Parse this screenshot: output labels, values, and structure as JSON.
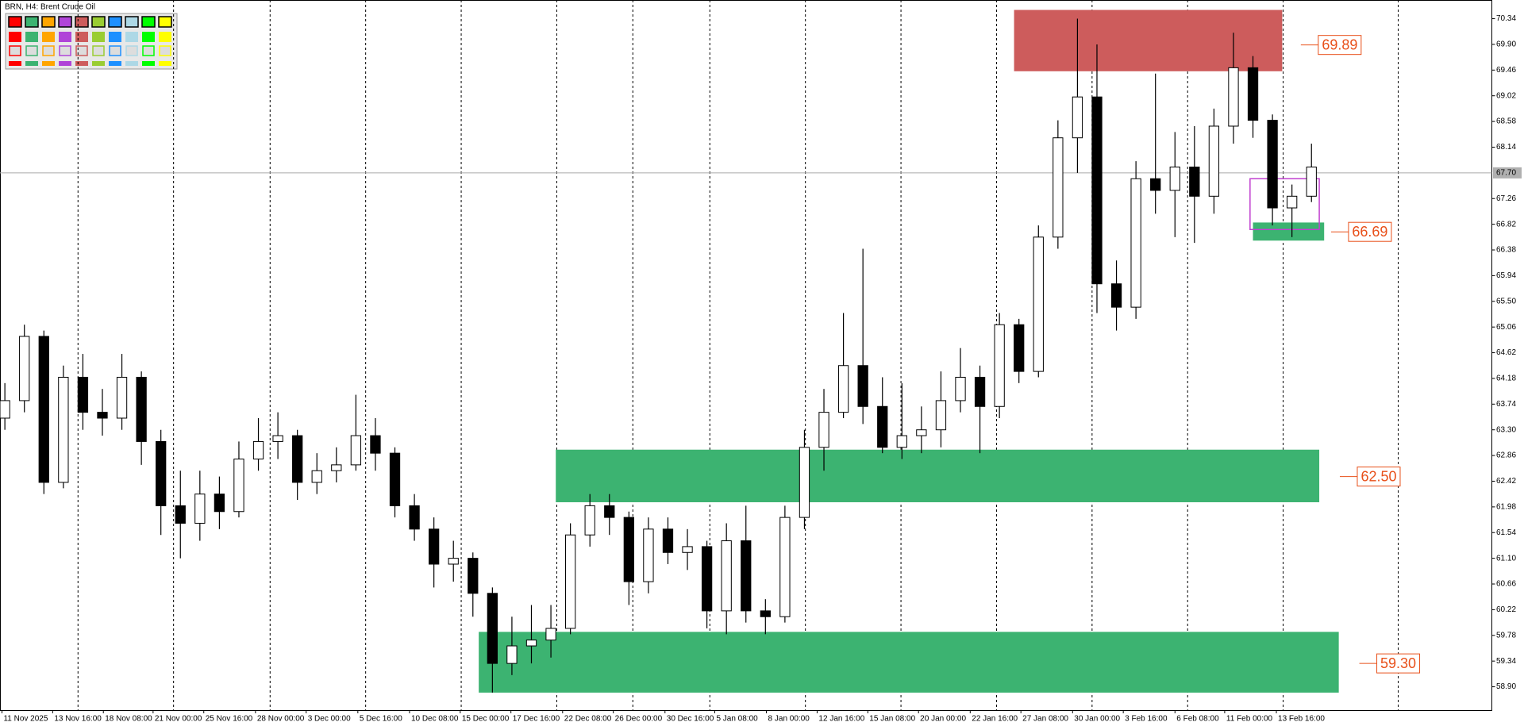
{
  "chart_data": {
    "type": "candlestick",
    "title": "BRN, H4:  Brent Crude Oil",
    "xlim": [
      -0.25,
      76.25
    ],
    "ylim": [
      58.5,
      70.66
    ],
    "open": [
      63.5,
      63.8,
      64.9,
      62.4,
      64.2,
      63.6,
      63.5,
      64.2,
      63.1,
      62.0,
      61.7,
      62.2,
      61.9,
      62.8,
      63.1,
      63.2,
      62.4,
      62.6,
      62.7,
      63.2,
      62.9,
      62.0,
      61.6,
      61.0,
      61.1,
      60.5,
      59.3,
      59.6,
      59.7,
      59.9,
      61.5,
      62.0,
      61.8,
      60.7,
      61.6,
      61.2,
      61.3,
      60.2,
      61.4,
      60.2,
      60.1,
      61.8,
      63.0,
      63.6,
      64.4,
      63.7,
      63.0,
      63.2,
      63.3,
      63.8,
      64.2,
      63.7,
      65.1,
      64.3,
      66.6,
      68.3,
      69.0,
      65.8,
      65.4,
      67.6,
      67.4,
      67.8,
      67.3,
      68.5,
      69.5,
      68.6,
      67.1,
      67.3
    ],
    "high": [
      64.1,
      65.1,
      65.0,
      64.4,
      64.6,
      64.0,
      64.6,
      64.3,
      63.3,
      62.6,
      62.6,
      62.5,
      63.1,
      63.5,
      63.6,
      63.3,
      62.9,
      63.0,
      63.9,
      63.5,
      63.0,
      62.2,
      61.8,
      61.4,
      61.2,
      60.6,
      60.1,
      60.3,
      60.3,
      61.7,
      62.2,
      62.2,
      61.9,
      61.8,
      61.8,
      61.6,
      61.4,
      61.7,
      62.0,
      60.4,
      62.0,
      63.3,
      64.0,
      65.3,
      66.4,
      64.2,
      64.1,
      63.7,
      64.3,
      64.7,
      64.4,
      65.3,
      65.2,
      66.8,
      68.6,
      70.34,
      69.9,
      66.2,
      67.9,
      69.4,
      68.4,
      68.5,
      68.8,
      70.1,
      69.7,
      68.7,
      67.5,
      68.2
    ],
    "low": [
      63.3,
      63.6,
      62.2,
      62.3,
      63.3,
      63.2,
      63.3,
      62.7,
      61.5,
      61.1,
      61.4,
      61.6,
      61.8,
      62.6,
      62.8,
      62.1,
      62.2,
      62.4,
      62.6,
      62.6,
      61.8,
      61.4,
      60.6,
      60.7,
      60.1,
      58.8,
      59.1,
      59.3,
      59.4,
      59.8,
      61.3,
      61.5,
      60.3,
      60.5,
      61.0,
      60.9,
      59.9,
      59.8,
      60.0,
      59.8,
      60.0,
      61.6,
      62.6,
      63.5,
      63.4,
      62.9,
      62.8,
      62.9,
      63.0,
      63.6,
      62.9,
      63.5,
      64.1,
      64.2,
      66.4,
      67.7,
      65.3,
      65.0,
      65.2,
      67.0,
      66.6,
      66.5,
      67.0,
      68.2,
      68.3,
      66.8,
      66.6,
      67.2
    ],
    "close": [
      63.8,
      64.9,
      62.4,
      64.2,
      63.6,
      63.5,
      64.2,
      63.1,
      62.0,
      61.7,
      62.2,
      61.9,
      62.8,
      63.1,
      63.2,
      62.4,
      62.6,
      62.7,
      63.2,
      62.9,
      62.0,
      61.6,
      61.0,
      61.1,
      60.5,
      59.3,
      59.6,
      59.7,
      59.9,
      61.5,
      62.0,
      61.8,
      60.7,
      61.6,
      61.2,
      61.3,
      60.2,
      61.4,
      60.2,
      60.1,
      61.8,
      63.0,
      63.6,
      64.4,
      63.7,
      63.0,
      63.2,
      63.3,
      63.8,
      64.2,
      63.7,
      65.1,
      64.3,
      66.6,
      68.3,
      69.0,
      65.8,
      65.4,
      67.6,
      67.4,
      67.8,
      67.3,
      68.5,
      69.5,
      68.6,
      67.1,
      67.3,
      67.8
    ],
    "yticks": [
      70.34,
      {
        "value": 69.9,
        "label": "69.90"
      },
      69.46,
      69.02,
      68.58,
      68.14,
      67.26,
      66.82,
      66.38,
      65.94,
      {
        "value": 65.5,
        "label": "65.50"
      },
      65.06,
      64.62,
      64.18,
      63.74,
      {
        "value": 63.3,
        "label": "63.30"
      },
      62.86,
      62.42,
      61.98,
      61.54,
      {
        "value": 61.1,
        "label": "61.10"
      },
      60.66,
      60.22,
      59.78,
      59.34,
      {
        "value": 58.9,
        "label": "58.90"
      }
    ],
    "current_price": {
      "value": 67.7,
      "label": "67.70"
    },
    "xticks": [
      {
        "value": -0.15,
        "label": "11 Nov 2025"
      },
      {
        "value": 2.45,
        "label": "13 Nov 16:00"
      },
      {
        "value": 5.05,
        "label": "18 Nov 08:00"
      },
      {
        "value": 7.6,
        "label": "21 Nov 00:00"
      },
      {
        "value": 10.2,
        "label": "25 Nov 16:00"
      },
      {
        "value": 12.85,
        "label": "28 Nov 00:00"
      },
      {
        "value": 15.45,
        "label": "3 Dec 00:00"
      },
      {
        "value": 18.1,
        "label": "5 Dec 16:00"
      },
      {
        "value": 20.75,
        "label": "10 Dec 08:00"
      },
      {
        "value": 23.35,
        "label": "15 Dec 00:00"
      },
      {
        "value": 25.95,
        "label": "17 Dec 16:00"
      },
      {
        "value": 28.6,
        "label": "22 Dec 08:00"
      },
      {
        "value": 31.2,
        "label": "26 Dec 00:00"
      },
      {
        "value": 33.85,
        "label": "30 Dec 16:00"
      },
      {
        "value": 36.4,
        "label": "5 Jan 08:00"
      },
      {
        "value": 39.05,
        "label": "8 Jan 00:00"
      },
      {
        "value": 41.65,
        "label": "12 Jan 16:00"
      },
      {
        "value": 44.25,
        "label": "15 Jan 08:00"
      },
      {
        "value": 46.85,
        "label": "20 Jan 00:00"
      },
      {
        "value": 49.5,
        "label": "22 Jan 16:00"
      },
      {
        "value": 52.1,
        "label": "27 Jan 08:00"
      },
      {
        "value": 54.75,
        "label": "30 Jan 00:00"
      },
      {
        "value": 57.35,
        "label": "3 Feb 16:00"
      },
      {
        "value": 60,
        "label": "6 Feb 08:00"
      },
      {
        "value": 62.55,
        "label": "11 Feb 00:00"
      },
      {
        "value": 65.2,
        "label": "13 Feb 16:00"
      }
    ],
    "period_separators": [
      3.75,
      8.65,
      13.6,
      18.5,
      23.4,
      28.3,
      32.2,
      36.15,
      41.05,
      45.95,
      50.85,
      55.75,
      60.65,
      65.55,
      71.45
    ],
    "zones": [
      {
        "x0": 51.75,
        "x1": 65.5,
        "y0": 69.44,
        "y1": 70.49,
        "color": "#cd5c5c",
        "level": 69.89,
        "label_x": 67.35
      },
      {
        "x0": 64,
        "x1": 67.65,
        "y0": 66.54,
        "y1": 66.85,
        "color": "#3cb371",
        "level": 66.69,
        "label_x": 68.9
      },
      {
        "x0": 28.25,
        "x1": 67.4,
        "y0": 62.06,
        "y1": 62.96,
        "color": "#3cb371",
        "level": {
          "value": 62.5,
          "label": "62.50"
        },
        "label_x": 69.35
      },
      {
        "x0": 24.3,
        "x1": 68.4,
        "y0": 58.8,
        "y1": 59.84,
        "color": "#3cb371",
        "level": {
          "value": 59.3,
          "label": "59.30"
        },
        "label_x": 70.35
      }
    ],
    "box": {
      "x0": 63.85,
      "x1": 67.4,
      "y0": 66.73,
      "y1": 67.6,
      "color": "#c040d0"
    }
  }
}
